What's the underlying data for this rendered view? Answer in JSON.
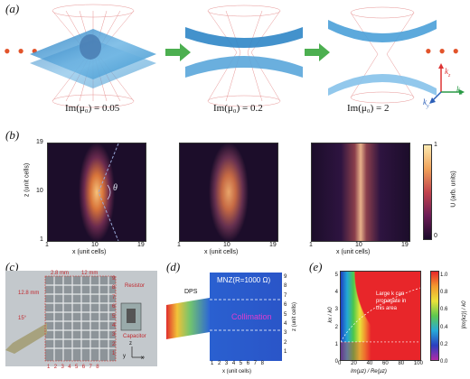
{
  "panels": {
    "a": {
      "letter": "(a)",
      "labels": [
        "Im(μ₀) = 0.05",
        "Im(μ₀) = 0.2",
        "Im(μ₀) = 2"
      ],
      "ellipsis": "• • •",
      "axes": {
        "kz": "k",
        "kz_sub": "z",
        "kx": "k",
        "kx_sub": "x",
        "ky": "k",
        "ky_sub": "y"
      }
    },
    "b": {
      "letter": "(b)",
      "z_axis_label": "z (unit cells)",
      "x_axis_label": "x (unit cells)",
      "ticks": [
        "1",
        "10",
        "19"
      ],
      "theta": "θ",
      "colorbar_label": "U (arb. units)",
      "colorbar_ticks": [
        "1",
        "0"
      ]
    },
    "c": {
      "letter": "(c)",
      "dims": [
        "2.8 mm",
        "12 mm",
        "12.8 mm",
        "15°"
      ],
      "x_ticks": [
        "1",
        "2",
        "3",
        "4",
        "5",
        "6",
        "7",
        "8"
      ],
      "y_ticks": [
        "1",
        "2",
        "3",
        "4",
        "5",
        "6",
        "7",
        "8",
        "9"
      ],
      "resistor": "Resistor",
      "capacitor": "Capacitor",
      "axis_x": "x",
      "axis_y": "y",
      "axis_z": "z"
    },
    "d": {
      "letter": "(d)",
      "title": "MNZ(R=1000 Ω)",
      "dps": "DPS",
      "collimation": "Collimation",
      "x_ticks": [
        "1",
        "2",
        "3",
        "4",
        "5",
        "6",
        "7",
        "8"
      ],
      "x_label": "x (unit cells)",
      "z_ticks": [
        "1",
        "2",
        "3",
        "4",
        "5",
        "6",
        "7",
        "8",
        "9"
      ],
      "z_label": "z (unit cells)"
    },
    "e": {
      "letter": "(e)",
      "y_ticks": [
        "0",
        "1",
        "2",
        "3",
        "4",
        "5"
      ],
      "x_ticks": [
        "0",
        "20",
        "40",
        "60",
        "80",
        "100"
      ],
      "y_label": "kx / k0",
      "x_label": "Im(μz) / Re(μz)",
      "note": [
        "Large k can",
        "propagate in",
        "this area"
      ],
      "colorbar_ticks": [
        "1.0",
        "0.8",
        "0.6",
        "0.4",
        "0.2",
        "0.0"
      ],
      "colorbar_label": "|Im(kz)| / k0"
    }
  }
}
